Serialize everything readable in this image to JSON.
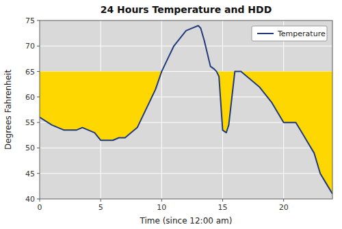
{
  "chart_data": {
    "type": "line",
    "title": "24 Hours Temperature and HDD",
    "xlabel": "Time (since 12:00 am)",
    "ylabel": "Degrees Fahrenheit",
    "x": [
      0,
      1,
      2,
      2.5,
      3,
      3.5,
      4,
      4.5,
      5,
      5.5,
      6,
      6.5,
      7,
      8,
      9,
      9.5,
      10,
      10.5,
      11,
      11.5,
      12,
      12.5,
      13,
      13.2,
      13.5,
      14,
      14.3,
      14.5,
      14.7,
      15,
      15.3,
      15.5,
      16,
      16.5,
      17,
      18,
      19,
      20,
      21,
      21.5,
      22,
      22.5,
      23,
      23.5,
      24
    ],
    "series": [
      {
        "name": "Temperature",
        "color": "#1F3A7A",
        "values": [
          56,
          54.5,
          53.5,
          53.5,
          53.5,
          54,
          53.5,
          53,
          51.5,
          51.5,
          51.5,
          52,
          52,
          54,
          59,
          61.5,
          65,
          67.5,
          70,
          71.5,
          73,
          73.5,
          74,
          73.5,
          71,
          66,
          65.5,
          65,
          64,
          53.5,
          53,
          54.5,
          65,
          65,
          64,
          62,
          59,
          55,
          55,
          53,
          51,
          49,
          45,
          43,
          41
        ]
      }
    ],
    "fill": {
      "baseline": 65,
      "color": "#FFD700"
    },
    "background": "#D9D9D9",
    "xlim": [
      0,
      24
    ],
    "ylim": [
      40,
      75
    ],
    "xticks": [
      0,
      5,
      10,
      15,
      20
    ],
    "yticks": [
      40,
      45,
      50,
      55,
      60,
      65,
      70,
      75
    ],
    "grid": true,
    "legend": "upper right"
  }
}
